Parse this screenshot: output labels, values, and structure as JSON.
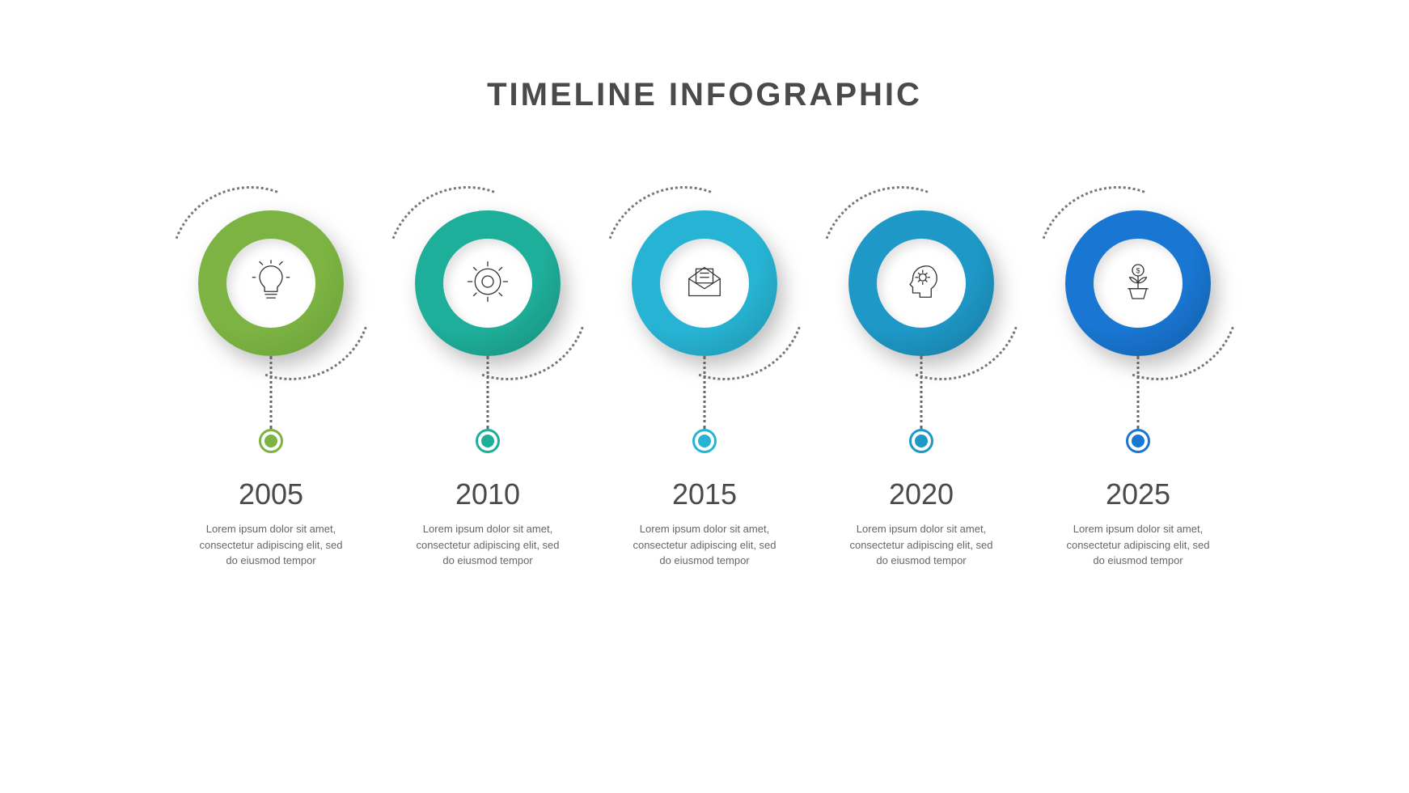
{
  "title": "TIMELINE INFOGRAPHIC",
  "type": "timeline",
  "background_color": "#ffffff",
  "title_color": "#4a4a4a",
  "title_fontsize": 40,
  "year_fontsize": 36,
  "desc_fontsize": 13,
  "desc_color": "#666666",
  "circle_diameter": 180,
  "inner_circle_diameter": 110,
  "dotted_color": "#777777",
  "steps": [
    {
      "year": "2005",
      "desc": "Lorem ipsum dolor sit amet, consectetur adipiscing elit, sed do eiusmod tempor",
      "color": "#7cb342",
      "color_dark": "#689f38",
      "icon": "lightbulb"
    },
    {
      "year": "2010",
      "desc": "Lorem ipsum dolor sit amet, consectetur adipiscing elit, sed do eiusmod tempor",
      "color": "#1eaf9a",
      "color_dark": "#17897a",
      "icon": "gear"
    },
    {
      "year": "2015",
      "desc": "Lorem ipsum dolor sit amet, consectetur adipiscing elit, sed do eiusmod tempor",
      "color": "#27b4d4",
      "color_dark": "#1d8fa8",
      "icon": "mail"
    },
    {
      "year": "2020",
      "desc": "Lorem ipsum dolor sit amet, consectetur adipiscing elit, sed do eiusmod tempor",
      "color": "#1e98c7",
      "color_dark": "#17769b",
      "icon": "head-gear"
    },
    {
      "year": "2025",
      "desc": "Lorem ipsum dolor sit amet, consectetur adipiscing elit, sed do eiusmod tempor",
      "color": "#1976d2",
      "color_dark": "#135ba1",
      "icon": "plant-money"
    }
  ]
}
